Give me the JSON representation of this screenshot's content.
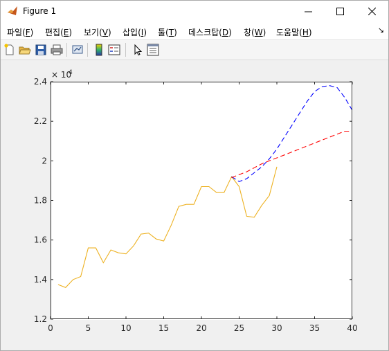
{
  "window": {
    "title": "Figure 1",
    "controls": [
      "minimize",
      "maximize",
      "close"
    ]
  },
  "menu": [
    {
      "label": "파일(",
      "key": "F",
      "end": ")"
    },
    {
      "label": "편집(",
      "key": "E",
      "end": ")"
    },
    {
      "label": "보기(",
      "key": "V",
      "end": ")"
    },
    {
      "label": "삽입(",
      "key": "I",
      "end": ")"
    },
    {
      "label": "툴(",
      "key": "T",
      "end": ")"
    },
    {
      "label": "데스크탑(",
      "key": "D",
      "end": ")"
    },
    {
      "label": "창(",
      "key": "W",
      "end": ")"
    },
    {
      "label": "도움말(",
      "key": "H",
      "end": ")"
    }
  ],
  "toolbar": {
    "icons": [
      "new-figure-icon",
      "open-file-icon",
      "save-icon",
      "print-icon",
      "link-plot-icon",
      "insert-colorbar-icon",
      "insert-legend-icon",
      "edit-plot-arrow-icon",
      "property-inspector-icon"
    ]
  },
  "chart_data": {
    "type": "line",
    "exponent_label": "× 10",
    "exponent_power": "4",
    "xlim": [
      0,
      40
    ],
    "ylim": [
      12000,
      24000
    ],
    "x_ticks": [
      0,
      5,
      10,
      15,
      20,
      25,
      30,
      35,
      40
    ],
    "y_ticks": [
      12000,
      14000,
      16000,
      18000,
      20000,
      22000,
      24000
    ],
    "x_tick_labels": [
      "0",
      "5",
      "10",
      "15",
      "20",
      "25",
      "30",
      "35",
      "40"
    ],
    "y_tick_labels": [
      "1.2",
      "1.4",
      "1.6",
      "1.8",
      "2",
      "2.2",
      "2.4"
    ],
    "grid": false,
    "series": [
      {
        "color": "#EDB120",
        "style": "solid",
        "x": [
          1,
          2,
          3,
          4,
          5,
          6,
          7,
          8,
          9,
          10,
          11,
          12,
          13,
          14,
          15,
          16,
          17,
          18,
          19,
          20,
          21,
          22,
          23,
          24,
          25,
          26,
          27,
          28,
          29,
          30
        ],
        "y": [
          13750,
          13600,
          14000,
          14150,
          15600,
          15600,
          14850,
          15500,
          15350,
          15300,
          15700,
          16300,
          16350,
          16050,
          15950,
          16750,
          17700,
          17800,
          17800,
          18700,
          18700,
          18400,
          18400,
          19200,
          18700,
          17200,
          17150,
          17750,
          18250,
          19700
        ]
      },
      {
        "color": "#0000FF",
        "style": "dashed",
        "x": [
          24,
          25,
          26,
          27,
          28,
          29,
          30,
          31,
          32,
          33,
          34,
          35,
          36,
          37,
          38,
          39,
          40
        ],
        "y": [
          19200,
          18950,
          19100,
          19400,
          19700,
          20100,
          20600,
          21200,
          21800,
          22400,
          23000,
          23500,
          23750,
          23800,
          23700,
          23200,
          22550
        ]
      },
      {
        "color": "#FF0000",
        "style": "dashed",
        "x": [
          24,
          25,
          26,
          27,
          28,
          29,
          30,
          31,
          32,
          33,
          34,
          35,
          36,
          37,
          38,
          39,
          40
        ],
        "y": [
          19150,
          19300,
          19450,
          19650,
          19850,
          20000,
          20150,
          20300,
          20450,
          20600,
          20750,
          20900,
          21050,
          21200,
          21350,
          21500,
          21500
        ]
      }
    ]
  }
}
